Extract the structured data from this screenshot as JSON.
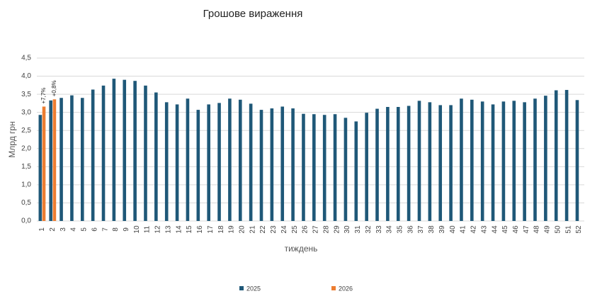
{
  "chart_data": {
    "type": "bar",
    "title": "Грошове вираження",
    "xlabel": "тиждень",
    "ylabel": "Млрд грн",
    "categories": [
      "1",
      "2",
      "3",
      "4",
      "5",
      "6",
      "7",
      "8",
      "9",
      "10",
      "11",
      "12",
      "13",
      "14",
      "15",
      "16",
      "17",
      "18",
      "19",
      "20",
      "21",
      "22",
      "23",
      "24",
      "25",
      "26",
      "27",
      "28",
      "29",
      "30",
      "31",
      "32",
      "33",
      "34",
      "35",
      "36",
      "37",
      "38",
      "39",
      "40",
      "41",
      "42",
      "43",
      "44",
      "45",
      "46",
      "47",
      "48",
      "49",
      "50",
      "51",
      "52"
    ],
    "series": [
      {
        "name": "2025",
        "color": "#1f5878",
        "values": [
          2.93,
          3.33,
          3.4,
          3.47,
          3.4,
          3.63,
          3.74,
          3.93,
          3.9,
          3.87,
          3.74,
          3.55,
          3.28,
          3.22,
          3.38,
          3.07,
          3.22,
          3.26,
          3.38,
          3.35,
          3.24,
          3.07,
          3.11,
          3.16,
          3.11,
          2.96,
          2.95,
          2.93,
          2.95,
          2.85,
          2.75,
          2.99,
          3.1,
          3.15,
          3.15,
          3.18,
          3.32,
          3.28,
          3.2,
          3.2,
          3.38,
          3.35,
          3.3,
          3.22,
          3.3,
          3.32,
          3.28,
          3.38,
          3.46,
          3.61,
          3.62,
          3.34
        ]
      },
      {
        "name": "2026",
        "color": "#ed7d31",
        "values": [
          3.16,
          3.36,
          null,
          null,
          null,
          null,
          null,
          null,
          null,
          null,
          null,
          null,
          null,
          null,
          null,
          null,
          null,
          null,
          null,
          null,
          null,
          null,
          null,
          null,
          null,
          null,
          null,
          null,
          null,
          null,
          null,
          null,
          null,
          null,
          null,
          null,
          null,
          null,
          null,
          null,
          null,
          null,
          null,
          null,
          null,
          null,
          null,
          null,
          null,
          null,
          null,
          null
        ]
      }
    ],
    "annotations": [
      {
        "category": "1",
        "text": "+7,7%"
      },
      {
        "category": "2",
        "text": "+0,8%"
      }
    ],
    "ylim": [
      0,
      4.5
    ],
    "yticks": [
      {
        "value": 0,
        "label": "0,0"
      },
      {
        "value": 0.5,
        "label": "0,5"
      },
      {
        "value": 1,
        "label": "1,0"
      },
      {
        "value": 1.5,
        "label": "1,5"
      },
      {
        "value": 2,
        "label": "2,0"
      },
      {
        "value": 2.5,
        "label": "2,5"
      },
      {
        "value": 3,
        "label": "3,0"
      },
      {
        "value": 3.5,
        "label": "3,5"
      },
      {
        "value": 4,
        "label": "4,0"
      },
      {
        "value": 4.5,
        "label": "4,5"
      }
    ],
    "grid": true,
    "legend": "bottom"
  }
}
